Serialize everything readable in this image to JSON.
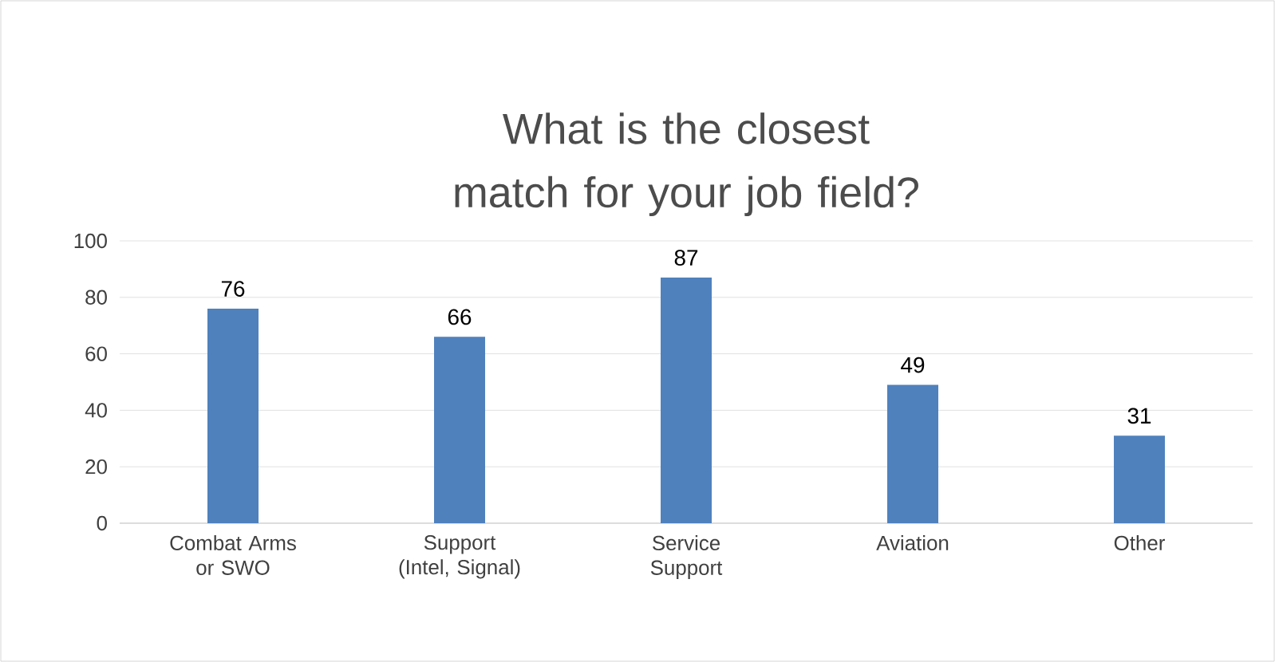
{
  "chart_data": {
    "type": "bar",
    "title": "What is the closest match for your job field?",
    "categories": [
      "Combat Arms or SWO",
      "Support (Intel, Signal)",
      "Service Support",
      "Aviation",
      "Other"
    ],
    "values": [
      76,
      66,
      87,
      49,
      31
    ],
    "color": "#4f81bd",
    "ylim": [
      0,
      100
    ],
    "yticks": [
      0,
      20,
      40,
      60,
      80,
      100
    ],
    "grid": "y",
    "data_labels": true
  }
}
